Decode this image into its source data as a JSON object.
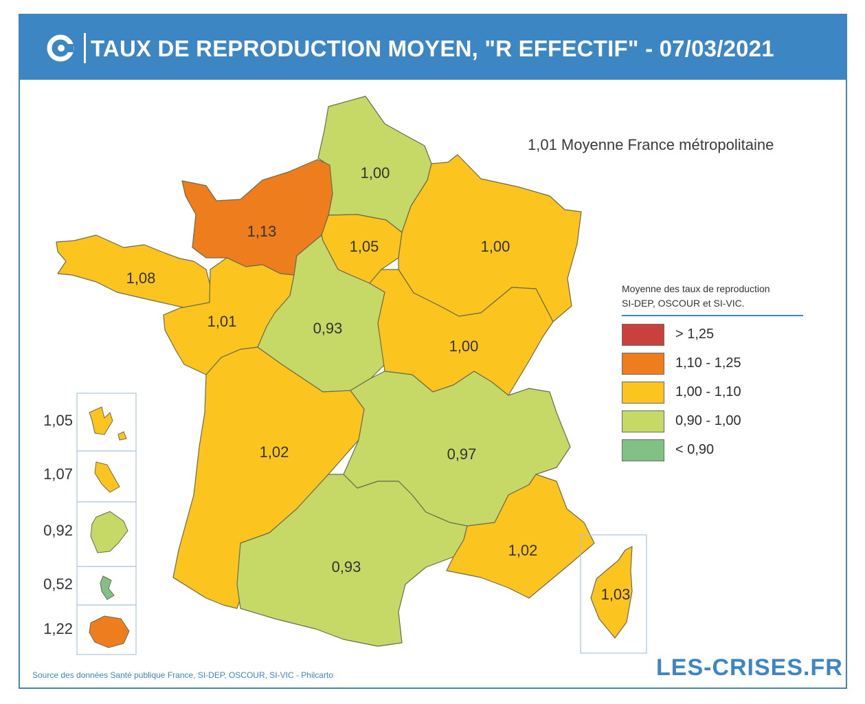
{
  "title": "TAUX DE REPRODUCTION MOYEN, \"R EFFECTIF\" - 07/03/2021",
  "national_average": "1,01 Moyenne France métropolitaine",
  "legend": {
    "title_line1": "Moyenne des taux de reproduction",
    "title_line2": "SI-DEP, OSCOUR et SI-VIC.",
    "items": [
      {
        "label": "> 1,25",
        "color": "#c9403c"
      },
      {
        "label": "1,10 - 1,25",
        "color": "#ed7d1d"
      },
      {
        "label": "1,00 - 1,10",
        "color": "#fbc41f"
      },
      {
        "label": "0,90 - 1,00",
        "color": "#c6d967"
      },
      {
        "label": "< 0,90",
        "color": "#82c184"
      }
    ]
  },
  "regions": [
    {
      "name": "Hauts-de-France",
      "value": "1,00",
      "class": "0,90 - 1,00"
    },
    {
      "name": "Normandie",
      "value": "1,13",
      "class": "1,10 - 1,25"
    },
    {
      "name": "Île-de-France",
      "value": "1,05",
      "class": "1,00 - 1,10"
    },
    {
      "name": "Grand Est",
      "value": "1,00",
      "class": "1,00 - 1,10"
    },
    {
      "name": "Bretagne",
      "value": "1,08",
      "class": "1,00 - 1,10"
    },
    {
      "name": "Pays de la Loire",
      "value": "1,01",
      "class": "1,00 - 1,10"
    },
    {
      "name": "Centre-Val de Loire",
      "value": "0,93",
      "class": "0,90 - 1,00"
    },
    {
      "name": "Bourgogne-Franche-Comté",
      "value": "1,00",
      "class": "1,00 - 1,10"
    },
    {
      "name": "Nouvelle-Aquitaine",
      "value": "1,02",
      "class": "1,00 - 1,10"
    },
    {
      "name": "Auvergne-Rhône-Alpes",
      "value": "0,97",
      "class": "0,90 - 1,00"
    },
    {
      "name": "Occitanie",
      "value": "0,93",
      "class": "0,90 - 1,00"
    },
    {
      "name": "Provence-Alpes-Côte d'Azur",
      "value": "1,02",
      "class": "1,00 - 1,10"
    },
    {
      "name": "Corse",
      "value": "1,03",
      "class": "1,00 - 1,10"
    }
  ],
  "overseas": [
    {
      "name": "Guadeloupe",
      "value": "1,05",
      "class": "1,00 - 1,10"
    },
    {
      "name": "Martinique",
      "value": "1,07",
      "class": "1,00 - 1,10"
    },
    {
      "name": "Guyane",
      "value": "0,92",
      "class": "0,90 - 1,00"
    },
    {
      "name": "Mayotte",
      "value": "0,52",
      "class": "< 0,90"
    },
    {
      "name": "La Réunion",
      "value": "1,22",
      "class": "1,10 - 1,25"
    }
  ],
  "source": "Source des données Santé publique France, SI-DEP, OSCOUR, SI-VIC - Philcarto",
  "brand": "LES-CRISES.FR",
  "colors": {
    "header": "#3c86c4",
    "border": "#3c86c4",
    "region_stroke": "#6b6b4e"
  }
}
